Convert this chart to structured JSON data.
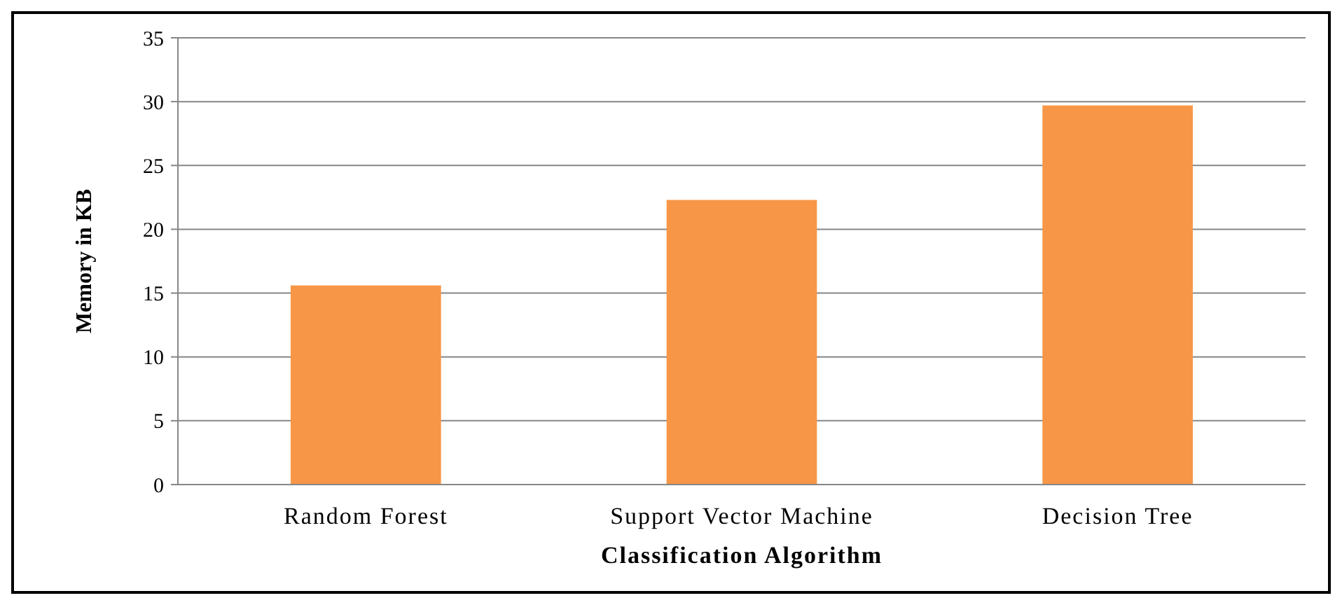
{
  "chart_data": {
    "type": "bar",
    "xlabel": "Classification Algorithm",
    "ylabel": "Memory in KB",
    "categories": [
      "Random Forest",
      "Support Vector Machine",
      "Decision Tree"
    ],
    "values": [
      15.6,
      22.3,
      29.7
    ],
    "color": "#f79646",
    "ylim": [
      0,
      35
    ],
    "yticks": [
      0,
      5,
      10,
      15,
      20,
      25,
      30,
      35
    ],
    "grid": "y"
  }
}
